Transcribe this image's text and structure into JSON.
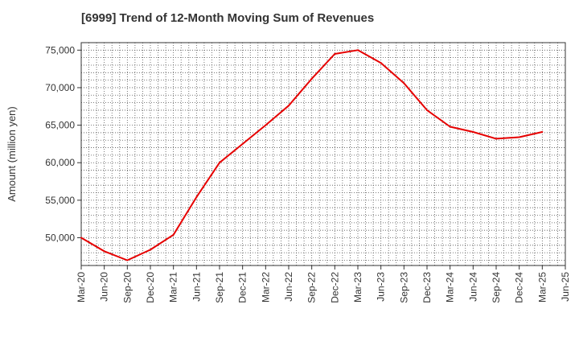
{
  "title": "[6999]  Trend of 12-Month Moving Sum of Revenues",
  "chart_data": {
    "type": "line",
    "title": "[6999]  Trend of 12-Month Moving Sum of Revenues",
    "xlabel": "",
    "ylabel": "Amount (million yen)",
    "categories": [
      "Mar-20",
      "Jun-20",
      "Sep-20",
      "Dec-20",
      "Mar-21",
      "Jun-21",
      "Sep-21",
      "Dec-21",
      "Mar-22",
      "Jun-22",
      "Sep-22",
      "Dec-22",
      "Mar-23",
      "Jun-23",
      "Sep-23",
      "Dec-23",
      "Mar-24",
      "Jun-24",
      "Sep-24",
      "Dec-24",
      "Mar-25",
      "Jun-25"
    ],
    "series": [
      {
        "color": "#e60000",
        "values": [
          50000,
          48200,
          47000,
          48400,
          50400,
          55400,
          60000,
          62500,
          65000,
          67600,
          71200,
          74500,
          75000,
          73300,
          70600,
          67000,
          64800,
          64100,
          63200,
          63400,
          64100,
          null
        ]
      }
    ],
    "ylim": [
      46300,
      76000
    ],
    "yticks": [
      50000,
      55000,
      60000,
      65000,
      70000,
      75000
    ],
    "ytick_labels": [
      "50,000",
      "55,000",
      "60,000",
      "65,000",
      "70,000",
      "75,000"
    ],
    "grid": true,
    "legend": "none"
  }
}
